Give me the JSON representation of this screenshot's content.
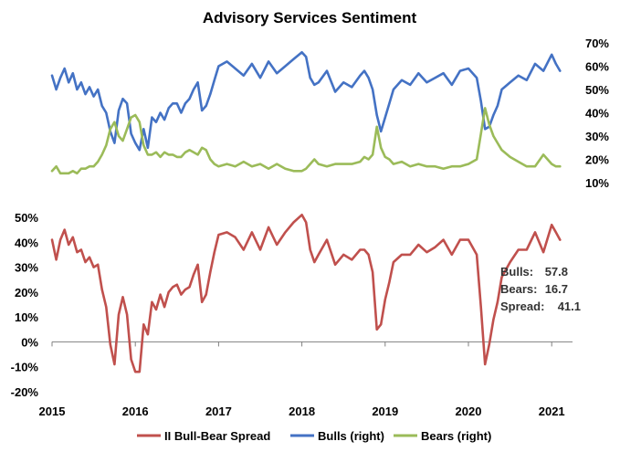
{
  "chart_data": [
    {
      "id": "top",
      "type": "line",
      "title": "Advisory Services Sentiment",
      "x_range": [
        2015.0,
        2021.25
      ],
      "y_axis": "right",
      "ylim": [
        0.1,
        0.7
      ],
      "y_ticks": [
        0.1,
        0.2,
        0.3,
        0.4,
        0.5,
        0.6,
        0.7
      ],
      "y_tick_labels": [
        "10%",
        "20%",
        "30%",
        "40%",
        "50%",
        "60%",
        "70%"
      ],
      "series": [
        {
          "name": "Bulls (right)",
          "color": "#4472C4",
          "x": [
            2015.0,
            2015.05,
            2015.1,
            2015.15,
            2015.2,
            2015.25,
            2015.3,
            2015.35,
            2015.4,
            2015.45,
            2015.5,
            2015.55,
            2015.6,
            2015.65,
            2015.7,
            2015.75,
            2015.8,
            2015.85,
            2015.9,
            2015.95,
            2016.0,
            2016.05,
            2016.1,
            2016.15,
            2016.2,
            2016.25,
            2016.3,
            2016.35,
            2016.4,
            2016.45,
            2016.5,
            2016.55,
            2016.6,
            2016.65,
            2016.7,
            2016.75,
            2016.8,
            2016.85,
            2016.9,
            2016.95,
            2017.0,
            2017.1,
            2017.2,
            2017.3,
            2017.4,
            2017.5,
            2017.6,
            2017.7,
            2017.8,
            2017.9,
            2018.0,
            2018.05,
            2018.1,
            2018.15,
            2018.2,
            2018.3,
            2018.4,
            2018.5,
            2018.6,
            2018.7,
            2018.75,
            2018.8,
            2018.85,
            2018.9,
            2018.95,
            2019.0,
            2019.05,
            2019.1,
            2019.2,
            2019.3,
            2019.4,
            2019.5,
            2019.6,
            2019.7,
            2019.8,
            2019.9,
            2020.0,
            2020.1,
            2020.15,
            2020.2,
            2020.25,
            2020.3,
            2020.35,
            2020.4,
            2020.5,
            2020.6,
            2020.7,
            2020.8,
            2020.9,
            2021.0,
            2021.05,
            2021.1
          ],
          "values": [
            0.56,
            0.5,
            0.55,
            0.59,
            0.53,
            0.57,
            0.5,
            0.53,
            0.48,
            0.51,
            0.47,
            0.5,
            0.43,
            0.4,
            0.32,
            0.27,
            0.41,
            0.46,
            0.44,
            0.31,
            0.27,
            0.24,
            0.33,
            0.25,
            0.38,
            0.36,
            0.4,
            0.37,
            0.42,
            0.44,
            0.44,
            0.4,
            0.44,
            0.46,
            0.5,
            0.53,
            0.41,
            0.43,
            0.48,
            0.54,
            0.6,
            0.62,
            0.59,
            0.56,
            0.61,
            0.55,
            0.62,
            0.57,
            0.6,
            0.63,
            0.66,
            0.64,
            0.55,
            0.52,
            0.53,
            0.58,
            0.49,
            0.53,
            0.51,
            0.56,
            0.58,
            0.55,
            0.5,
            0.39,
            0.32,
            0.38,
            0.44,
            0.5,
            0.54,
            0.52,
            0.57,
            0.53,
            0.55,
            0.57,
            0.52,
            0.58,
            0.59,
            0.55,
            0.45,
            0.33,
            0.34,
            0.39,
            0.43,
            0.5,
            0.53,
            0.56,
            0.54,
            0.61,
            0.58,
            0.65,
            0.61,
            0.58
          ]
        },
        {
          "name": "Bears (right)",
          "color": "#9BBB59",
          "x": [
            2015.0,
            2015.05,
            2015.1,
            2015.15,
            2015.2,
            2015.25,
            2015.3,
            2015.35,
            2015.4,
            2015.45,
            2015.5,
            2015.55,
            2015.6,
            2015.65,
            2015.7,
            2015.75,
            2015.8,
            2015.85,
            2015.9,
            2015.95,
            2016.0,
            2016.05,
            2016.1,
            2016.15,
            2016.2,
            2016.25,
            2016.3,
            2016.35,
            2016.4,
            2016.45,
            2016.5,
            2016.55,
            2016.6,
            2016.65,
            2016.7,
            2016.75,
            2016.8,
            2016.85,
            2016.9,
            2016.95,
            2017.0,
            2017.1,
            2017.2,
            2017.3,
            2017.4,
            2017.5,
            2017.6,
            2017.7,
            2017.8,
            2017.9,
            2018.0,
            2018.05,
            2018.1,
            2018.15,
            2018.2,
            2018.3,
            2018.4,
            2018.5,
            2018.6,
            2018.7,
            2018.75,
            2018.8,
            2018.85,
            2018.9,
            2018.95,
            2019.0,
            2019.05,
            2019.1,
            2019.2,
            2019.3,
            2019.4,
            2019.5,
            2019.6,
            2019.7,
            2019.8,
            2019.9,
            2020.0,
            2020.1,
            2020.15,
            2020.2,
            2020.25,
            2020.3,
            2020.35,
            2020.4,
            2020.5,
            2020.6,
            2020.7,
            2020.8,
            2020.9,
            2021.0,
            2021.05,
            2021.1
          ],
          "values": [
            0.15,
            0.17,
            0.14,
            0.14,
            0.14,
            0.15,
            0.14,
            0.16,
            0.16,
            0.17,
            0.17,
            0.19,
            0.22,
            0.26,
            0.33,
            0.36,
            0.3,
            0.28,
            0.33,
            0.38,
            0.39,
            0.36,
            0.26,
            0.22,
            0.22,
            0.23,
            0.21,
            0.23,
            0.22,
            0.22,
            0.21,
            0.21,
            0.23,
            0.24,
            0.23,
            0.22,
            0.25,
            0.24,
            0.2,
            0.18,
            0.17,
            0.18,
            0.17,
            0.19,
            0.17,
            0.18,
            0.16,
            0.18,
            0.16,
            0.15,
            0.15,
            0.16,
            0.18,
            0.2,
            0.18,
            0.17,
            0.18,
            0.18,
            0.18,
            0.19,
            0.21,
            0.2,
            0.22,
            0.34,
            0.25,
            0.21,
            0.2,
            0.18,
            0.19,
            0.17,
            0.18,
            0.17,
            0.17,
            0.16,
            0.17,
            0.17,
            0.18,
            0.2,
            0.31,
            0.42,
            0.35,
            0.3,
            0.27,
            0.24,
            0.21,
            0.19,
            0.17,
            0.17,
            0.22,
            0.18,
            0.17,
            0.17
          ]
        }
      ]
    },
    {
      "id": "bottom",
      "type": "line",
      "title": "",
      "x_range": [
        2015.0,
        2021.25
      ],
      "x_ticks": [
        2015,
        2016,
        2017,
        2018,
        2019,
        2020,
        2021
      ],
      "x_tick_labels": [
        "2015",
        "2016",
        "2017",
        "2018",
        "2019",
        "2020",
        "2021"
      ],
      "y_axis": "left",
      "ylim": [
        -0.2,
        0.5
      ],
      "y_ticks": [
        -0.2,
        -0.1,
        0.0,
        0.1,
        0.2,
        0.3,
        0.4,
        0.5
      ],
      "y_tick_labels": [
        "-20%",
        "-10%",
        "0%",
        "10%",
        "20%",
        "30%",
        "40%",
        "50%"
      ],
      "series": [
        {
          "name": "II Bull-Bear Spread",
          "color": "#C0504D",
          "x": [
            2015.0,
            2015.05,
            2015.1,
            2015.15,
            2015.2,
            2015.25,
            2015.3,
            2015.35,
            2015.4,
            2015.45,
            2015.5,
            2015.55,
            2015.6,
            2015.65,
            2015.7,
            2015.75,
            2015.8,
            2015.85,
            2015.9,
            2015.95,
            2016.0,
            2016.05,
            2016.1,
            2016.15,
            2016.2,
            2016.25,
            2016.3,
            2016.35,
            2016.4,
            2016.45,
            2016.5,
            2016.55,
            2016.6,
            2016.65,
            2016.7,
            2016.75,
            2016.8,
            2016.85,
            2016.9,
            2016.95,
            2017.0,
            2017.1,
            2017.2,
            2017.3,
            2017.4,
            2017.5,
            2017.6,
            2017.7,
            2017.8,
            2017.9,
            2018.0,
            2018.05,
            2018.1,
            2018.15,
            2018.2,
            2018.3,
            2018.4,
            2018.5,
            2018.6,
            2018.7,
            2018.75,
            2018.8,
            2018.85,
            2018.9,
            2018.95,
            2019.0,
            2019.05,
            2019.1,
            2019.2,
            2019.3,
            2019.4,
            2019.5,
            2019.6,
            2019.7,
            2019.8,
            2019.9,
            2020.0,
            2020.1,
            2020.15,
            2020.2,
            2020.25,
            2020.3,
            2020.35,
            2020.4,
            2020.5,
            2020.6,
            2020.7,
            2020.8,
            2020.9,
            2021.0,
            2021.05,
            2021.1
          ],
          "values": [
            0.41,
            0.33,
            0.41,
            0.45,
            0.39,
            0.42,
            0.36,
            0.37,
            0.32,
            0.34,
            0.3,
            0.31,
            0.21,
            0.14,
            -0.01,
            -0.09,
            0.11,
            0.18,
            0.11,
            -0.07,
            -0.12,
            -0.12,
            0.07,
            0.03,
            0.16,
            0.13,
            0.19,
            0.14,
            0.2,
            0.22,
            0.23,
            0.19,
            0.21,
            0.22,
            0.27,
            0.31,
            0.16,
            0.19,
            0.28,
            0.36,
            0.43,
            0.44,
            0.42,
            0.37,
            0.44,
            0.37,
            0.46,
            0.39,
            0.44,
            0.48,
            0.51,
            0.48,
            0.37,
            0.32,
            0.35,
            0.41,
            0.31,
            0.35,
            0.33,
            0.37,
            0.37,
            0.35,
            0.28,
            0.05,
            0.07,
            0.17,
            0.24,
            0.32,
            0.35,
            0.35,
            0.39,
            0.36,
            0.38,
            0.41,
            0.35,
            0.41,
            0.41,
            0.35,
            0.14,
            -0.09,
            -0.01,
            0.09,
            0.16,
            0.26,
            0.32,
            0.37,
            0.37,
            0.44,
            0.36,
            0.47,
            0.44,
            0.41
          ]
        }
      ],
      "annotation": {
        "bulls_label": "Bulls:",
        "bulls_value": "57.8",
        "bears_label": "Bears:",
        "bears_value": "16.7",
        "spread_label": "Spread:",
        "spread_value": "41.1"
      }
    }
  ],
  "legend": {
    "placement": "bottom-center",
    "items": [
      {
        "label": "II Bull-Bear Spread",
        "color": "#C0504D"
      },
      {
        "label": "Bulls (right)",
        "color": "#4472C4"
      },
      {
        "label": "Bears (right)",
        "color": "#9BBB59"
      }
    ]
  }
}
